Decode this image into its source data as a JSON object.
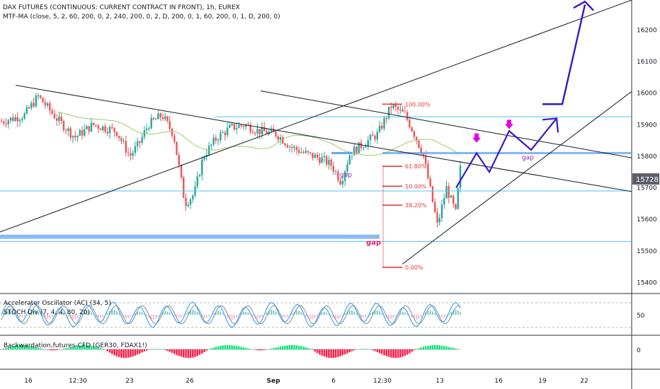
{
  "header": {
    "title": "DAX FUTURES (CONTINUOUS: CURRENT CONTRACT IN FRONT), 1h, EUREX",
    "indicator": "MTF-MA (close, 5, 2, 60, 200, 0, 2, 240, 200, 0, 2, D, 200, 0, 1, 60, 200, 0, 1, D, 200, 0)"
  },
  "panes": {
    "oscillator_label_1": "Accelerator Oscillator (AC) (34, 5)",
    "oscillator_label_2": "STOCH Div (7, 4, 4, 80, 20)",
    "oscillator_axis": "50",
    "backwardation_label": "Backwardation,futures-CFD (GER30, FDAX1!)",
    "backwardation_axis": "0"
  },
  "price_marker": {
    "value": "15728",
    "color": "#5d606b"
  },
  "annotations": {
    "gap_left": "gap",
    "gap_bottom": "gap",
    "gap_right": "gap"
  },
  "fib_levels": [
    {
      "label": "100.00%",
      "price": 15965
    },
    {
      "label": "61.80%",
      "price": 15768
    },
    {
      "label": "50.00%",
      "price": 15705
    },
    {
      "label": "38.20%",
      "price": 15645
    },
    {
      "label": "0.00%",
      "price": 15448
    }
  ],
  "colors": {
    "candle_up": "#26a69a",
    "candle_down": "#ef5350",
    "ma": "#9ccc65",
    "projection": "#3a17c4",
    "arrow_marker": "#e400e4",
    "hline": "#4fc3f7",
    "gap_zone": "#64a3f0",
    "fib": "#e53935",
    "trendline": "#131722"
  },
  "chart_data": {
    "type": "candlestick",
    "title": "DAX FUTURES (CONTINUOUS: CURRENT CONTRACT IN FRONT), 1h, EUREX",
    "price_axis_ticks": [
      16200,
      16100,
      16000,
      15900,
      15800,
      15700,
      15600,
      15500,
      15400
    ],
    "ylim": [
      15365,
      16295
    ],
    "x_ticks": [
      "16",
      "12:30",
      "23",
      "26",
      "Sep",
      "6",
      "12:30",
      "13",
      "16",
      "19",
      "22"
    ],
    "last_price": 15728,
    "price_path": [
      {
        "x": 0.0,
        "price": 15910
      },
      {
        "x": 0.05,
        "price": 15930
      },
      {
        "x": 0.08,
        "price": 15990
      },
      {
        "x": 0.12,
        "price": 15920
      },
      {
        "x": 0.16,
        "price": 15860
      },
      {
        "x": 0.2,
        "price": 15900
      },
      {
        "x": 0.25,
        "price": 15880
      },
      {
        "x": 0.28,
        "price": 15800
      },
      {
        "x": 0.3,
        "price": 15840
      },
      {
        "x": 0.32,
        "price": 15900
      },
      {
        "x": 0.35,
        "price": 15930
      },
      {
        "x": 0.375,
        "price": 15870
      },
      {
        "x": 0.4,
        "price": 15650
      },
      {
        "x": 0.42,
        "price": 15680
      },
      {
        "x": 0.44,
        "price": 15800
      },
      {
        "x": 0.47,
        "price": 15860
      },
      {
        "x": 0.5,
        "price": 15890
      },
      {
        "x": 0.53,
        "price": 15900
      },
      {
        "x": 0.56,
        "price": 15880
      },
      {
        "x": 0.6,
        "price": 15870
      },
      {
        "x": 0.63,
        "price": 15830
      },
      {
        "x": 0.66,
        "price": 15810
      },
      {
        "x": 0.7,
        "price": 15790
      },
      {
        "x": 0.72,
        "price": 15770
      },
      {
        "x": 0.74,
        "price": 15720
      },
      {
        "x": 0.76,
        "price": 15810
      },
      {
        "x": 0.79,
        "price": 15840
      },
      {
        "x": 0.82,
        "price": 15870
      },
      {
        "x": 0.85,
        "price": 15960
      },
      {
        "x": 0.88,
        "price": 15930
      },
      {
        "x": 0.9,
        "price": 15870
      },
      {
        "x": 0.92,
        "price": 15800
      },
      {
        "x": 0.95,
        "price": 15580
      },
      {
        "x": 0.97,
        "price": 15700
      },
      {
        "x": 0.99,
        "price": 15620
      },
      {
        "x": 1.0,
        "price": 15760
      }
    ],
    "projection_path": [
      {
        "date": "13",
        "price": 15700
      },
      {
        "offset": 1,
        "price": 15810
      },
      {
        "offset": 2,
        "price": 15750
      },
      {
        "offset": 3,
        "price": 15880
      },
      {
        "offset": 4,
        "price": 15820
      },
      {
        "offset": 5,
        "price": 15920
      },
      {
        "offset": 6,
        "price": 16280
      }
    ],
    "horizontal_levels": [
      15925,
      15690,
      15530
    ],
    "gap_zones": [
      15545,
      15810
    ],
    "legend": "none",
    "grid": false
  }
}
